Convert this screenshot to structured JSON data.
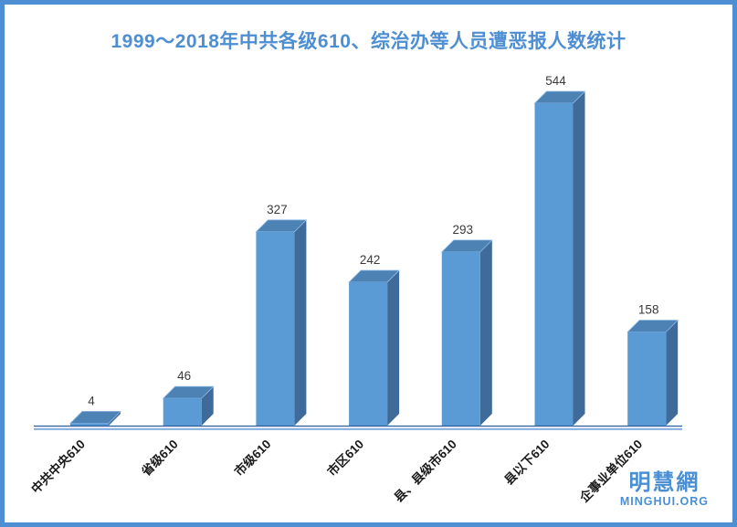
{
  "page": {
    "background": "#FFFFFF",
    "border_color": "#4E8ED2"
  },
  "title": "1999～2018年中共各级610、综治办等人员遭恶报人数统计",
  "title_color": "#4E8ED2",
  "logo": {
    "cjk": "明慧網",
    "latin": "MINGHUI.ORG",
    "color": "#4A8FD3"
  },
  "chart_data": {
    "type": "bar",
    "style": "3d-column",
    "title": "1999～2018年中共各级610、综治办等人员遭恶报人数统计",
    "categories": [
      "中共中央610",
      "省级610",
      "市级610",
      "市区610",
      "县、县级市610",
      "县以下610",
      "企事业单位610"
    ],
    "values": [
      4,
      46,
      327,
      242,
      293,
      544,
      158
    ],
    "xlabel": "",
    "ylabel": "",
    "ylim": [
      0,
      560
    ],
    "grid": false,
    "legend": false,
    "data_labels": true,
    "category_label_rotation_deg": -45,
    "colors": {
      "bar_front": "#5B9BD5",
      "bar_top": "#4C82B4",
      "bar_side": "#3E6B99",
      "bar_edge": "#8FBBE8",
      "value_label": "#3A3A3A",
      "category_label": "#1A1A1A",
      "axis_line_dark": "#2E5B9A",
      "axis_line_light": "#86AFDF"
    }
  }
}
